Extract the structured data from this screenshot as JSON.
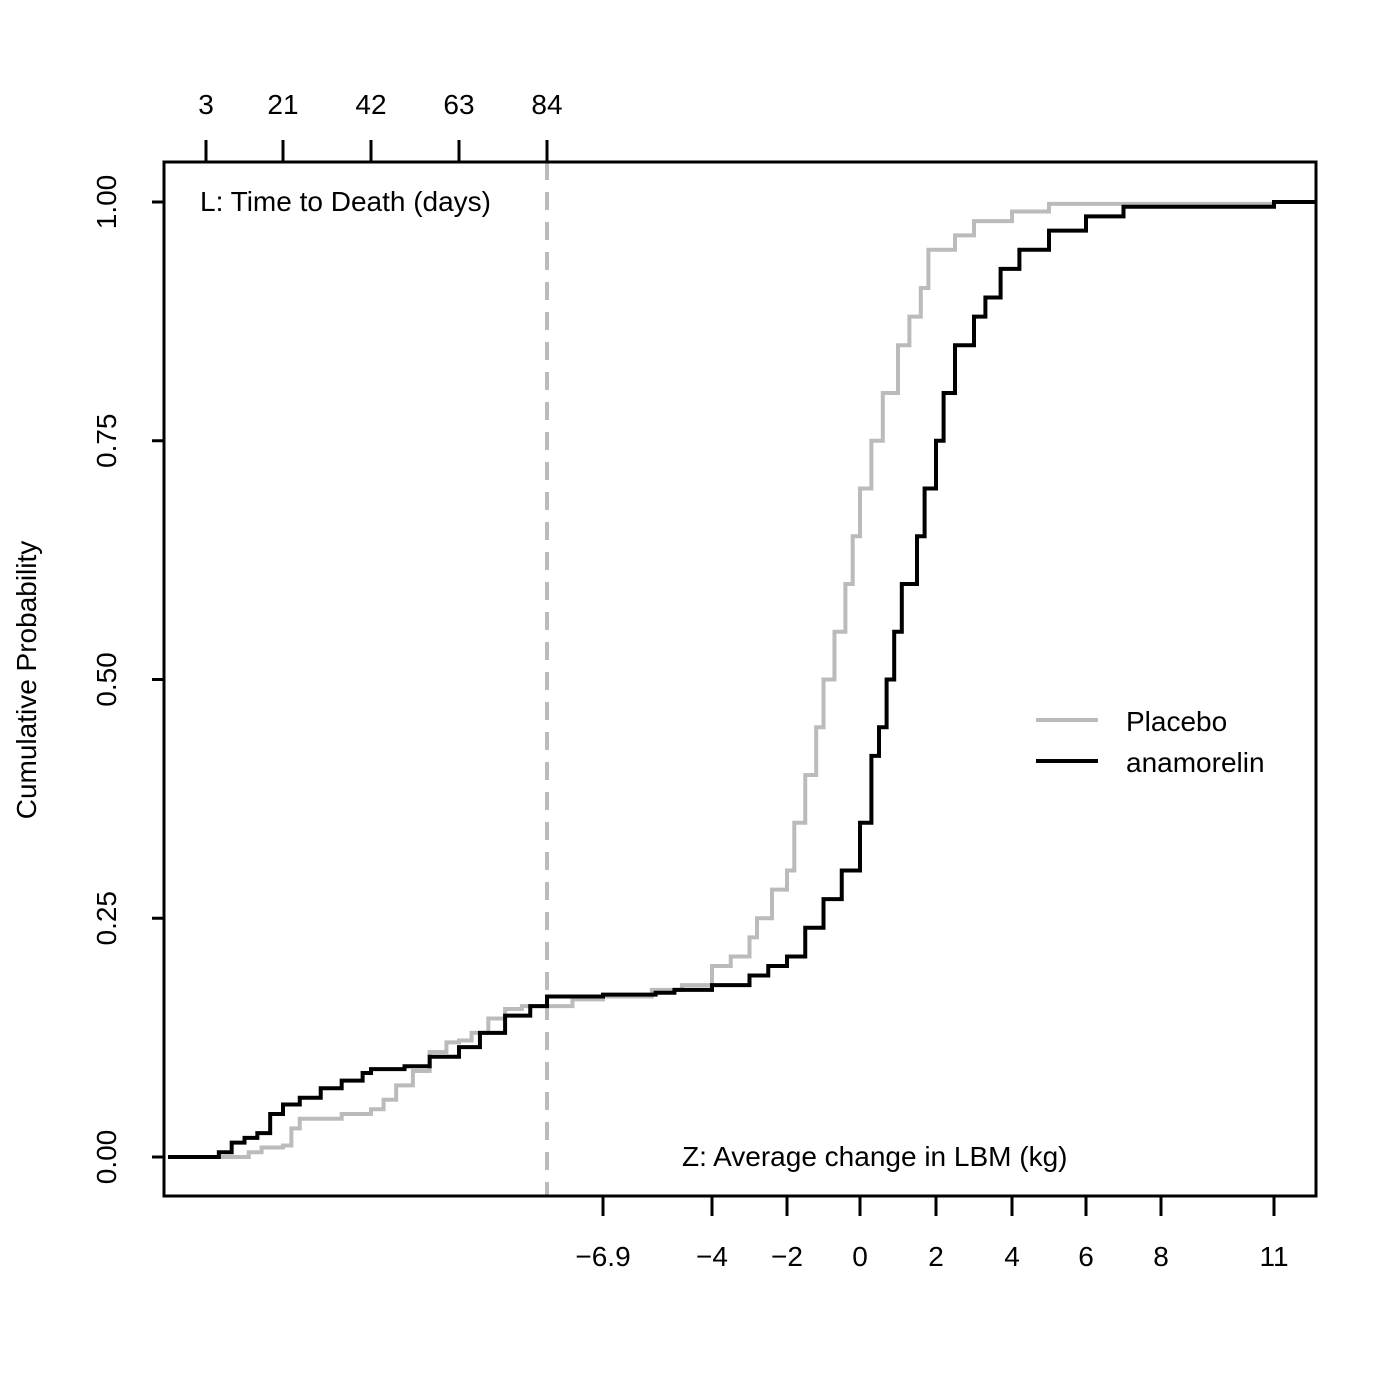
{
  "chart_data": {
    "type": "line",
    "ylabel": "Cumulative Probability",
    "top_axis_label": "L: Time to Death (days)",
    "bottom_axis_label": "Z: Average change in LBM (kg)",
    "ylim": [
      0,
      1
    ],
    "yticks": [
      "0.00",
      "0.25",
      "0.50",
      "0.75",
      "1.00"
    ],
    "top_ticks": [
      "3",
      "21",
      "42",
      "63",
      "84"
    ],
    "bottom_ticks": [
      "−6.9",
      "−4",
      "−2",
      "0",
      "2",
      "4",
      "6",
      "8",
      "11"
    ],
    "legend_position": "right",
    "colors": {
      "placebo": "#bbbbbb",
      "anamorelin": "#000000",
      "cutoff": "#bbbbbb"
    },
    "series": [
      {
        "name": "Placebo",
        "color": "#bbbbbb",
        "points": [
          [
            "0",
            0.0
          ],
          [
            "3",
            0.0
          ],
          [
            "10",
            0.0
          ],
          [
            "13",
            0.005
          ],
          [
            "16",
            0.01
          ],
          [
            "21",
            0.012
          ],
          [
            "23",
            0.03
          ],
          [
            "25",
            0.04
          ],
          [
            "28",
            0.04
          ],
          [
            "35",
            0.045
          ],
          [
            "42",
            0.05
          ],
          [
            "45",
            0.06
          ],
          [
            "48",
            0.075
          ],
          [
            "52",
            0.09
          ],
          [
            "56",
            0.11
          ],
          [
            "60",
            0.12
          ],
          [
            "63",
            0.122
          ],
          [
            "66",
            0.13
          ],
          [
            "70",
            0.145
          ],
          [
            "74",
            0.155
          ],
          [
            "78",
            0.158
          ],
          [
            "84",
            0.158
          ],
          [
            "−8",
            0.158
          ],
          [
            "−7.5",
            0.165
          ],
          [
            "−6.9",
            0.168
          ],
          [
            "−5.6",
            0.175
          ],
          [
            "−4.8",
            0.18
          ],
          [
            "−4",
            0.2
          ],
          [
            "−3.5",
            0.21
          ],
          [
            "−3",
            0.23
          ],
          [
            "−2.8",
            0.25
          ],
          [
            "−2.4",
            0.28
          ],
          [
            "−2",
            0.3
          ],
          [
            "−1.8",
            0.35
          ],
          [
            "−1.5",
            0.4
          ],
          [
            "−1.2",
            0.45
          ],
          [
            "−1",
            0.5
          ],
          [
            "−0.7",
            0.55
          ],
          [
            "−0.4",
            0.6
          ],
          [
            "−0.2",
            0.65
          ],
          [
            "0",
            0.7
          ],
          [
            "0.3",
            0.75
          ],
          [
            "0.6",
            0.8
          ],
          [
            "1",
            0.85
          ],
          [
            "1.3",
            0.88
          ],
          [
            "1.6",
            0.91
          ],
          [
            "1.8",
            0.95
          ],
          [
            "2.5",
            0.965
          ],
          [
            "3",
            0.98
          ],
          [
            "4",
            0.99
          ],
          [
            "5",
            0.998
          ],
          [
            "11",
            1.0
          ],
          [
            "12",
            1.0
          ]
        ]
      },
      {
        "name": "anamorelin",
        "color": "#000000",
        "points": [
          [
            "0",
            0.0
          ],
          [
            "3",
            0.0
          ],
          [
            "6",
            0.005
          ],
          [
            "9",
            0.015
          ],
          [
            "12",
            0.02
          ],
          [
            "15",
            0.025
          ],
          [
            "18",
            0.045
          ],
          [
            "21",
            0.055
          ],
          [
            "25",
            0.062
          ],
          [
            "30",
            0.072
          ],
          [
            "35",
            0.08
          ],
          [
            "40",
            0.088
          ],
          [
            "42",
            0.092
          ],
          [
            "50",
            0.095
          ],
          [
            "56",
            0.105
          ],
          [
            "63",
            0.115
          ],
          [
            "68",
            0.13
          ],
          [
            "74",
            0.148
          ],
          [
            "80",
            0.158
          ],
          [
            "84",
            0.168
          ],
          [
            "−6.9",
            0.17
          ],
          [
            "−5.5",
            0.172
          ],
          [
            "−5",
            0.175
          ],
          [
            "−4",
            0.18
          ],
          [
            "−3",
            0.19
          ],
          [
            "−2.5",
            0.2
          ],
          [
            "−2",
            0.21
          ],
          [
            "−1.5",
            0.24
          ],
          [
            "−1",
            0.27
          ],
          [
            "−0.5",
            0.3
          ],
          [
            "0",
            0.35
          ],
          [
            "0.3",
            0.42
          ],
          [
            "0.5",
            0.45
          ],
          [
            "0.7",
            0.5
          ],
          [
            "0.9",
            0.55
          ],
          [
            "1.1",
            0.6
          ],
          [
            "1.5",
            0.65
          ],
          [
            "1.7",
            0.7
          ],
          [
            "2",
            0.75
          ],
          [
            "2.2",
            0.8
          ],
          [
            "2.5",
            0.85
          ],
          [
            "3",
            0.88
          ],
          [
            "3.3",
            0.9
          ],
          [
            "3.7",
            0.93
          ],
          [
            "4.2",
            0.95
          ],
          [
            "5",
            0.97
          ],
          [
            "6",
            0.985
          ],
          [
            "7",
            0.995
          ],
          [
            "11",
            1.0
          ],
          [
            "12",
            1.0
          ]
        ]
      }
    ],
    "cutoff_line": "84"
  }
}
